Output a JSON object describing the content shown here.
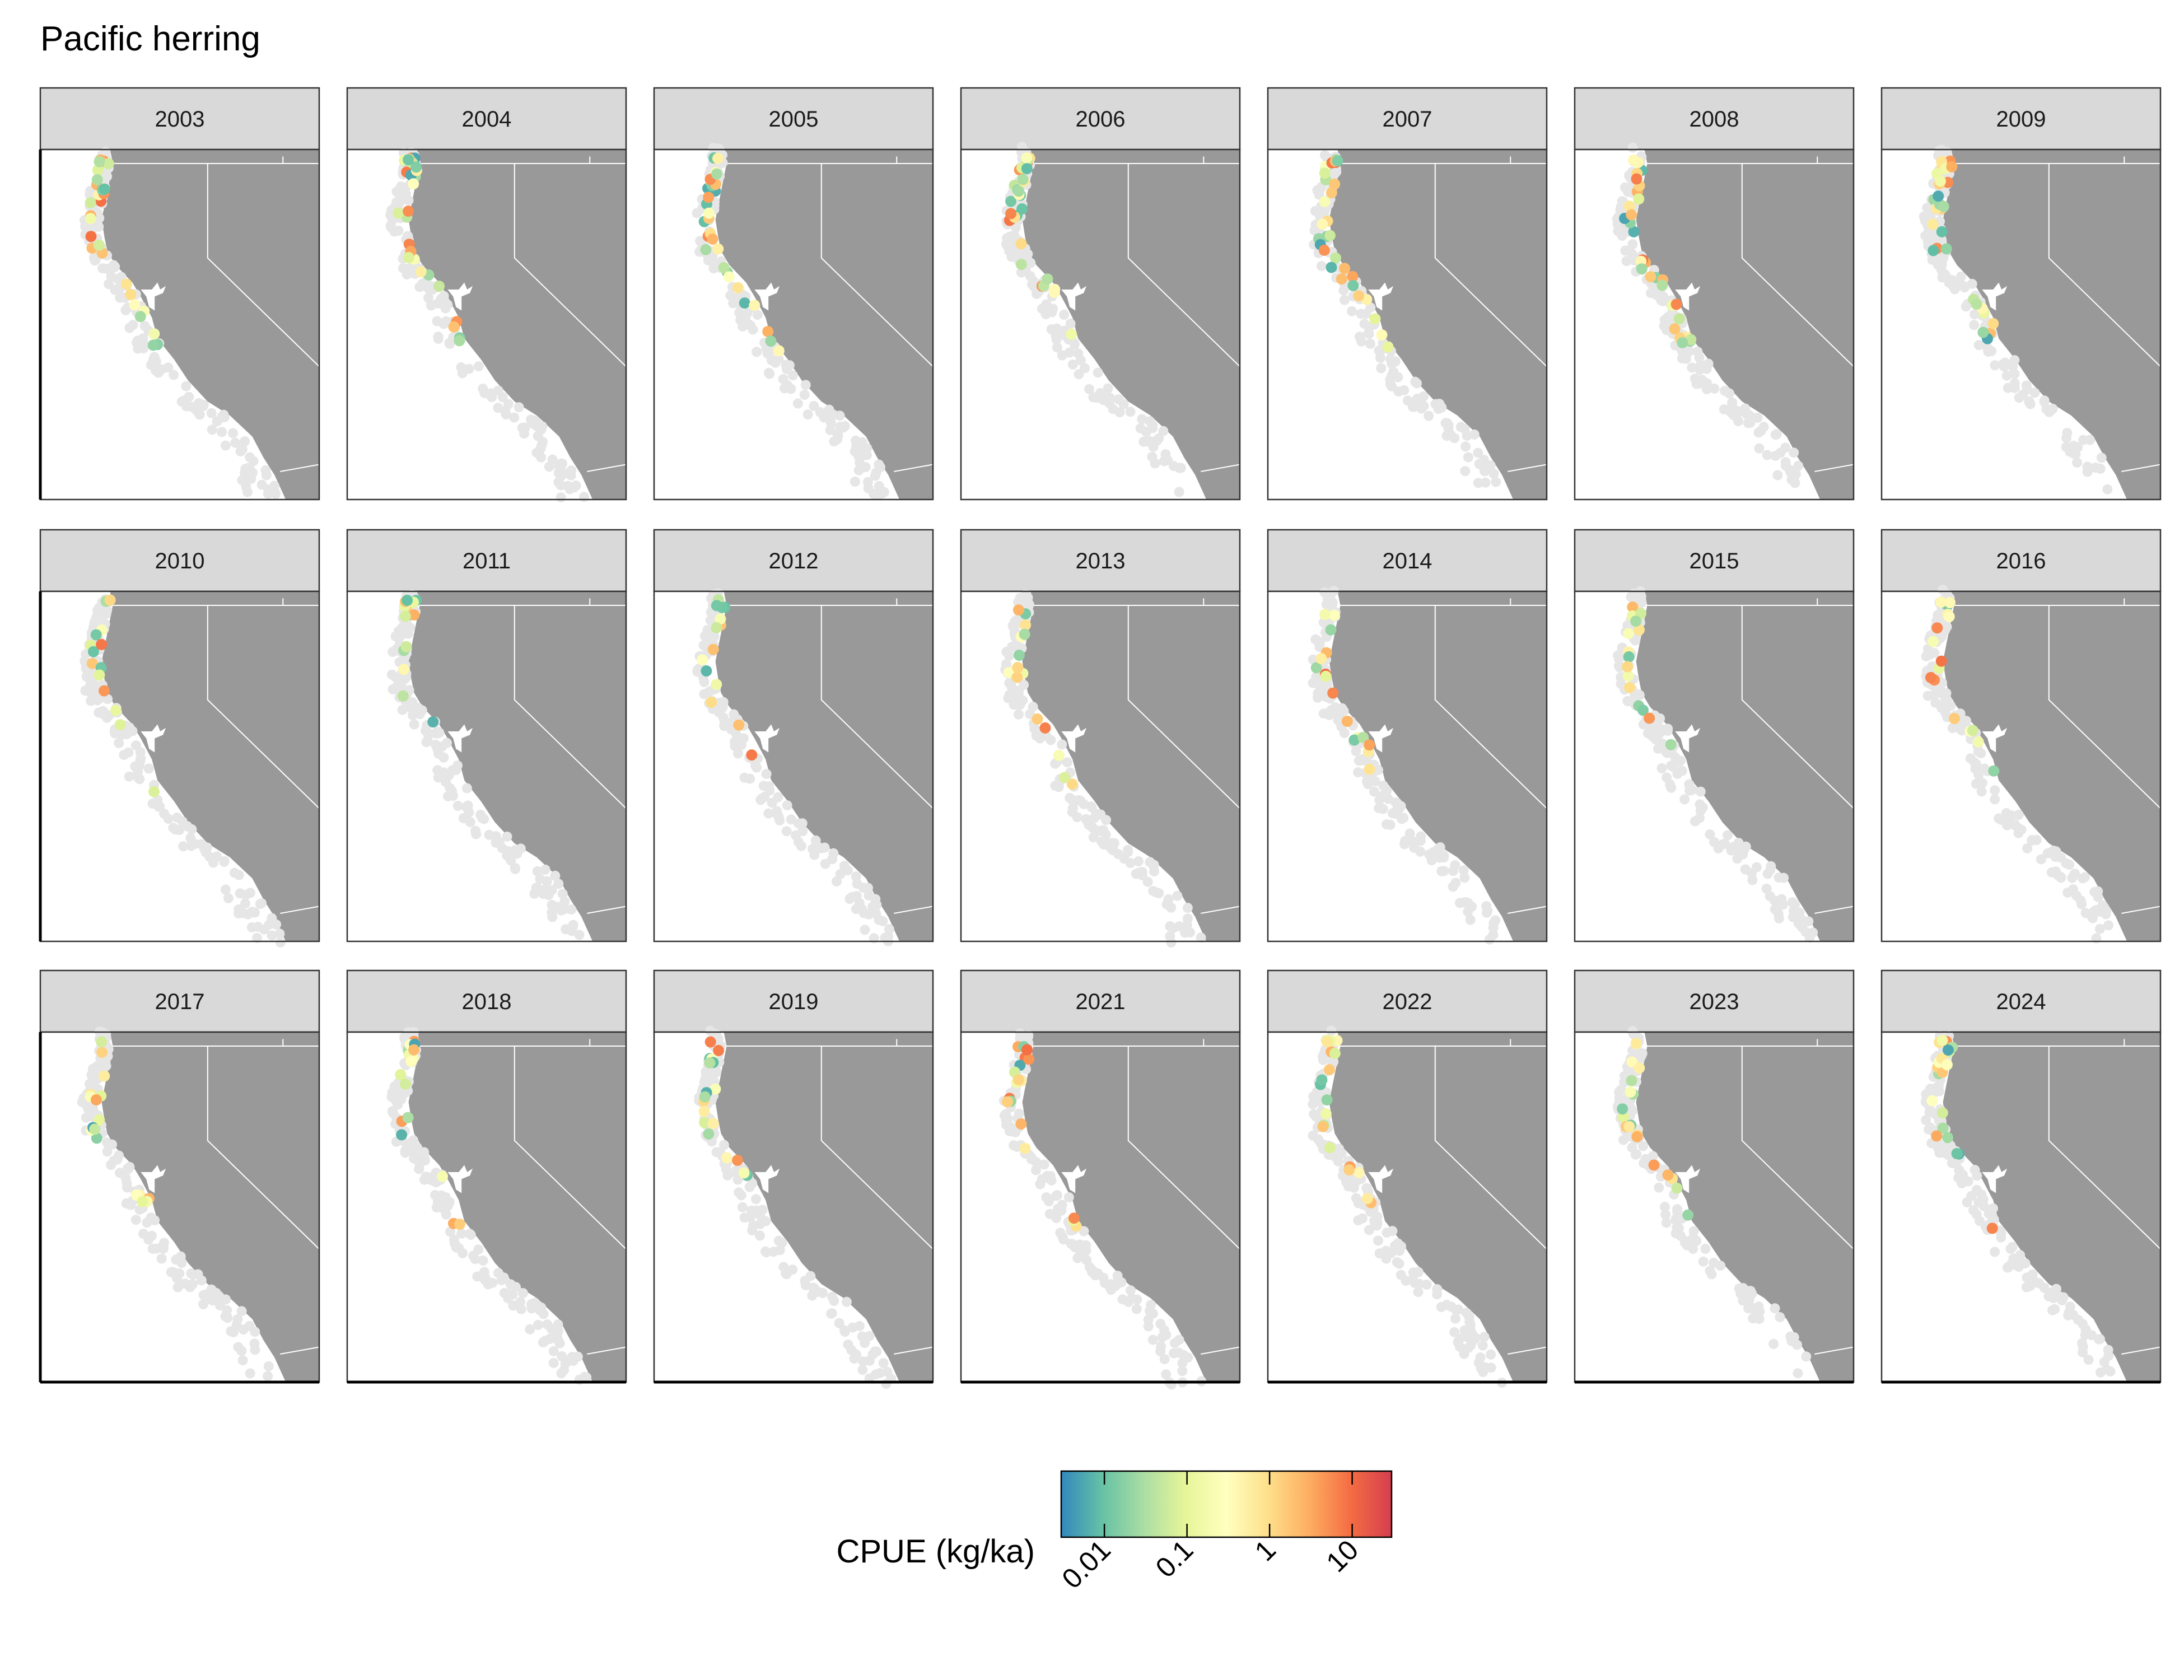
{
  "title": "Pacific herring",
  "years": [
    "2003",
    "2004",
    "2005",
    "2006",
    "2007",
    "2008",
    "2009",
    "2010",
    "2011",
    "2012",
    "2013",
    "2014",
    "2015",
    "2016",
    "2017",
    "2018",
    "2019",
    "2021",
    "2022",
    "2023",
    "2024"
  ],
  "legend": {
    "title": "CPUE (kg/ka)",
    "ticks": [
      "0.01",
      "0.1",
      "1",
      "10"
    ],
    "tick_values": [
      0.01,
      0.1,
      1,
      10
    ],
    "range": [
      0.003,
      30
    ],
    "scale": "log"
  },
  "colors": {
    "land": "#999999",
    "no_catch": "#e6e6e6",
    "strip": "#d9d9d9",
    "ramp": [
      "#3288bd",
      "#66c2a5",
      "#abdda4",
      "#e6f598",
      "#ffffbf",
      "#fee08b",
      "#fdae61",
      "#f46d43",
      "#d53e4f"
    ]
  },
  "chart_data": {
    "type": "scatter",
    "title": "Pacific herring",
    "facets": "year",
    "color_variable": "CPUE (kg/ka)",
    "color_scale": "log",
    "color_range": [
      0.003,
      30
    ],
    "legend_ticks": [
      0.01,
      0.1,
      1,
      10
    ]
  }
}
